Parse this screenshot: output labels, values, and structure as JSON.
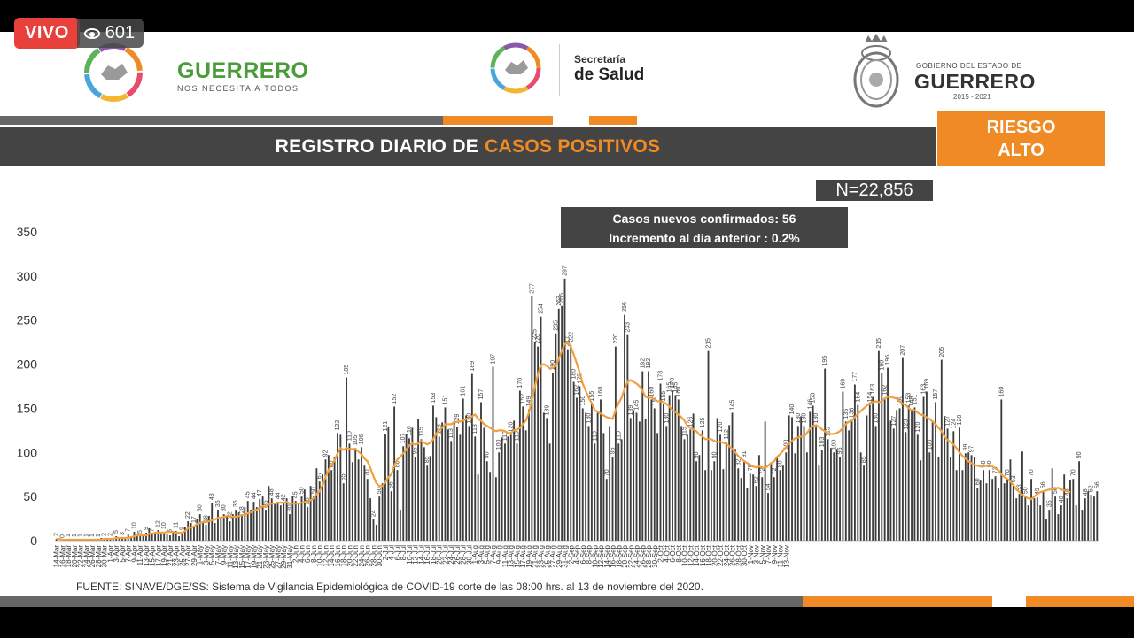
{
  "stream": {
    "live_label": "VIVO",
    "viewers": "601"
  },
  "header": {
    "brand_name": "GUERRERO",
    "brand_tagline": "NOS NECESITA A TODOS",
    "secretaria_line1": "Secretaría",
    "secretaria_line2": "de Salud",
    "gobierno_line1": "GOBIERNO DEL ESTADO DE",
    "gobierno_line2": "GUERRERO",
    "gobierno_line3": "2015 - 2021"
  },
  "title": {
    "prefix": "REGISTRO DIARIO DE",
    "highlight": "CASOS POSITIVOS"
  },
  "risk": {
    "line1": "RIESGO",
    "line2": "ALTO"
  },
  "total_label": "N=22,856",
  "callout": {
    "line1": "Casos nuevos confirmados: 56",
    "line2": "Incremento al día anterior : 0.2%"
  },
  "source": "FUENTE: SINAVE/DGE/SS: Sistema de Vigilancia Epidemiológica de COVID-19 corte de las 08:00 hrs. al 13 de noviembre del 2020.",
  "colors": {
    "bar": "#3d3d3d",
    "average_line": "#f0a040",
    "accent_orange": "#f08a24",
    "title_bar": "#444444",
    "live_red": "#e8413b",
    "brand_green": "#4a9c3a"
  },
  "chart_data": {
    "type": "bar",
    "start_date": "14-Mar",
    "end_date": "13-Nov",
    "tick_labels": [
      "14-Mar",
      "16-Mar",
      "18-Mar",
      "20-Mar",
      "22-Mar",
      "24-Mar",
      "26-Mar",
      "28-Mar",
      "30-Mar",
      "1-Apr",
      "3-Apr",
      "5-Apr",
      "7-Apr",
      "9-Apr",
      "11-Apr",
      "13-Apr",
      "15-Apr",
      "17-Apr",
      "19-Apr",
      "21-Apr",
      "23-Apr",
      "25-Apr",
      "27-Apr",
      "29-Apr",
      "1-May",
      "3-May",
      "5-May",
      "7-May",
      "9-May",
      "11-May",
      "13-May",
      "15-May",
      "17-May",
      "19-May",
      "21-May",
      "23-May",
      "25-May",
      "27-May",
      "29-May",
      "31-May",
      "2-Jun",
      "4-Jun",
      "6-Jun",
      "8-Jun",
      "10-Jun",
      "12-Jun",
      "14-Jun",
      "16-Jun",
      "18-Jun",
      "20-Jun",
      "22-Jun",
      "24-Jun",
      "26-Jun",
      "28-Jun",
      "30-Jun",
      "2-Jul",
      "4-Jul",
      "6-Jul",
      "8-Jul",
      "10-Jul",
      "12-Jul",
      "14-Jul",
      "16-Jul",
      "18-Jul",
      "20-Jul",
      "22-Jul",
      "24-Jul",
      "26-Jul",
      "28-Jul",
      "30-Jul",
      "1-Aug",
      "3-Aug",
      "5-Aug",
      "7-Aug",
      "9-Aug",
      "11-Aug",
      "13-Aug",
      "15-Aug",
      "17-Aug",
      "19-Aug",
      "21-Aug",
      "23-Aug",
      "25-Aug",
      "27-Aug",
      "29-Aug",
      "31-Aug",
      "2-Sep",
      "4-Sep",
      "6-Sep",
      "8-Sep",
      "10-Sep",
      "12-Sep",
      "14-Sep",
      "16-Sep",
      "18-Sep",
      "20-Sep",
      "22-Sep",
      "24-Sep",
      "26-Sep",
      "28-Sep",
      "30-Sep",
      "2-Oct",
      "4-Oct",
      "6-Oct",
      "8-Oct",
      "10-Oct",
      "12-Oct",
      "14-Oct",
      "16-Oct",
      "18-Oct",
      "20-Oct",
      "22-Oct",
      "24-Oct",
      "26-Oct",
      "28-Oct",
      "30-Oct",
      "1-Nov",
      "3-Nov",
      "5-Nov",
      "7-Nov",
      "9-Nov",
      "11-Nov",
      "13-Nov"
    ],
    "y_ticks": [
      0,
      50,
      100,
      150,
      200,
      250,
      300,
      350
    ],
    "ylim": [
      0,
      350
    ],
    "values": [
      2,
      0,
      0,
      0,
      1,
      1,
      1,
      0,
      1,
      0,
      1,
      1,
      1,
      1,
      1,
      3,
      2,
      3,
      2,
      3,
      5,
      3,
      3,
      4,
      7,
      5,
      10,
      8,
      5,
      6,
      9,
      14,
      7,
      9,
      12,
      7,
      10,
      8,
      6,
      10,
      11,
      5,
      9,
      16,
      22,
      20,
      17,
      25,
      30,
      22,
      18,
      28,
      43,
      20,
      35,
      25,
      30,
      28,
      22,
      30,
      35,
      32,
      28,
      38,
      45,
      35,
      44,
      38,
      47,
      50,
      35,
      62,
      48,
      42,
      44,
      40,
      42,
      48,
      30,
      51,
      45,
      42,
      50,
      58,
      38,
      62,
      50,
      82,
      67,
      75,
      92,
      97,
      80,
      95,
      122,
      120,
      65,
      185,
      110,
      89,
      105,
      92,
      106,
      85,
      70,
      48,
      24,
      18,
      50,
      65,
      121,
      129,
      56,
      152,
      80,
      35,
      107,
      121,
      116,
      128,
      95,
      138,
      115,
      106,
      85,
      96,
      153,
      140,
      118,
      134,
      151,
      126,
      113,
      136,
      129,
      120,
      161,
      142,
      130,
      189,
      118,
      75,
      157,
      128,
      90,
      78,
      197,
      72,
      100,
      117,
      110,
      118,
      120,
      136,
      110,
      170,
      152,
      125,
      149,
      277,
      225,
      220,
      254,
      145,
      139,
      110,
      190,
      235,
      263,
      266,
      297,
      217,
      222,
      180,
      162,
      175,
      150,
      145,
      130,
      155,
      110,
      145,
      160,
      122,
      70,
      130,
      95,
      220,
      110,
      115,
      256,
      233,
      139,
      148,
      145,
      135,
      192,
      138,
      192,
      160,
      150,
      122,
      178,
      155,
      130,
      165,
      170,
      165,
      160,
      130,
      115,
      120,
      126,
      144,
      90,
      97,
      125,
      80,
      215,
      80,
      90,
      139,
      120,
      81,
      112,
      131,
      145,
      104,
      82,
      71,
      91,
      60,
      76,
      75,
      62,
      97,
      72,
      135,
      54,
      88,
      72,
      95,
      80,
      85,
      100,
      142,
      140,
      99,
      130,
      141,
      130,
      100,
      146,
      153,
      130,
      85,
      103,
      195,
      115,
      105,
      100,
      104,
      95,
      169,
      135,
      125,
      136,
      177,
      154,
      100,
      85,
      142,
      154,
      163,
      130,
      215,
      190,
      162,
      196,
      136,
      127,
      148,
      150,
      207,
      123,
      153,
      149,
      151,
      120,
      91,
      163,
      169,
      100,
      136,
      157,
      95,
      205,
      141,
      127,
      95,
      124,
      80,
      128,
      80,
      99,
      100,
      97,
      95,
      60,
      68,
      80,
      65,
      80,
      70,
      73,
      60,
      160,
      65,
      70,
      92,
      63,
      48,
      53,
      101,
      50,
      40,
      70,
      48,
      49,
      40,
      56,
      25,
      35,
      82,
      50,
      30,
      40,
      75,
      48,
      69,
      70,
      40,
      90,
      35,
      48,
      56,
      52,
      50,
      56
    ],
    "average_line_values": [
      2,
      2,
      1,
      1,
      1,
      1,
      1,
      1,
      1,
      1,
      1,
      1,
      1,
      1,
      1,
      1,
      2,
      2,
      2,
      2,
      3,
      3,
      3,
      3,
      3,
      4,
      5,
      6,
      6,
      6,
      6,
      8,
      8,
      9,
      9,
      9,
      9,
      10,
      10,
      10,
      9,
      9,
      9,
      11,
      14,
      15,
      16,
      19,
      20,
      21,
      21,
      22,
      23,
      24,
      26,
      26,
      27,
      28,
      28,
      27,
      27,
      28,
      29,
      29,
      31,
      32,
      34,
      35,
      37,
      39,
      38,
      41,
      42,
      42,
      43,
      43,
      43,
      44,
      42,
      42,
      42,
      42,
      43,
      44,
      44,
      46,
      48,
      53,
      56,
      63,
      72,
      80,
      86,
      91,
      99,
      105,
      103,
      105,
      104,
      104,
      104,
      101,
      98,
      93,
      90,
      82,
      73,
      65,
      62,
      62,
      66,
      72,
      75,
      85,
      92,
      95,
      99,
      103,
      108,
      110,
      109,
      110,
      113,
      111,
      109,
      111,
      115,
      121,
      125,
      128,
      132,
      132,
      132,
      134,
      135,
      135,
      136,
      138,
      138,
      141,
      143,
      138,
      136,
      132,
      130,
      128,
      126,
      124,
      125,
      125,
      124,
      122,
      122,
      125,
      126,
      128,
      132,
      136,
      145,
      160,
      175,
      188,
      199,
      200,
      198,
      195,
      196,
      198,
      206,
      215,
      223,
      225,
      220,
      211,
      201,
      190,
      178,
      170,
      162,
      156,
      148,
      146,
      144,
      142,
      140,
      139,
      138,
      148,
      156,
      162,
      172,
      180,
      182,
      180,
      178,
      175,
      170,
      163,
      162,
      162,
      160,
      158,
      158,
      157,
      155,
      152,
      148,
      146,
      143,
      140,
      136,
      130,
      128,
      126,
      124,
      120,
      118,
      115,
      115,
      115,
      113,
      112,
      112,
      111,
      110,
      107,
      104,
      100,
      96,
      93,
      90,
      88,
      86,
      84,
      83,
      84,
      83,
      82,
      85,
      88,
      90,
      95,
      98,
      102,
      106,
      110,
      113,
      116,
      117,
      118,
      118,
      122,
      127,
      130,
      131,
      129,
      126,
      124,
      121,
      121,
      121,
      122,
      124,
      128,
      132,
      135,
      136,
      140,
      144,
      147,
      150,
      153,
      156,
      157,
      158,
      157,
      158,
      161,
      163,
      163,
      162,
      161,
      158,
      155,
      154,
      150,
      148,
      148,
      145,
      143,
      142,
      140,
      138,
      135,
      132,
      128,
      124,
      118,
      114,
      112,
      109,
      105,
      100,
      96,
      93,
      90,
      88,
      86,
      85,
      84,
      84,
      85,
      86,
      84,
      82,
      80,
      75,
      72,
      70,
      67,
      63,
      58,
      55,
      52,
      50,
      48,
      47,
      50,
      53,
      55,
      56,
      57,
      58,
      58,
      59,
      60,
      58,
      57,
      56,
      55
    ]
  }
}
